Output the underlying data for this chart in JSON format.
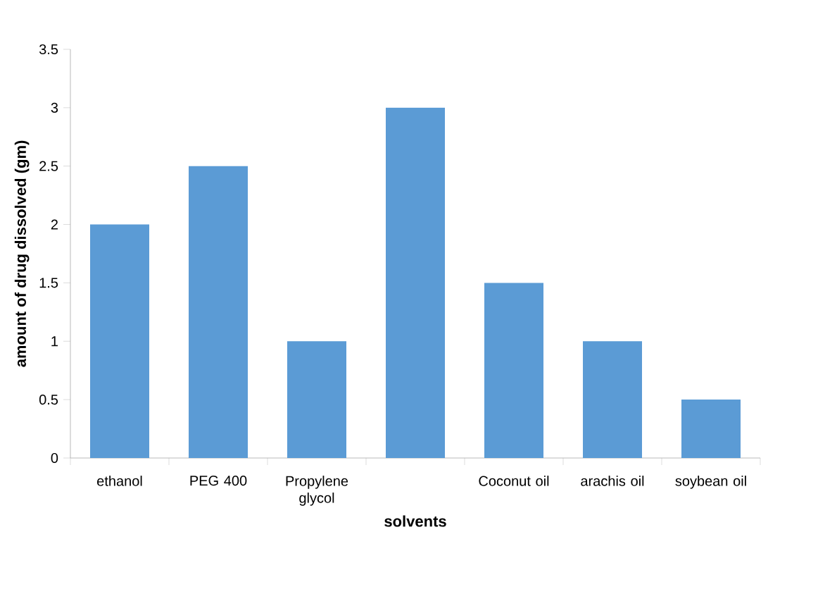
{
  "chart_data": {
    "type": "bar",
    "xlabel": "solvents",
    "ylabel": "amount of drug dissolved (gm)",
    "categories": [
      "ethanol",
      "PEG 400",
      "Propylene glycol",
      null,
      "Coconut oil",
      "arachis oil",
      "soybean oil"
    ],
    "values": [
      2,
      2.5,
      1,
      3,
      1.5,
      1,
      0.5
    ],
    "color": "#5b9bd5",
    "ylim": [
      0,
      3.5
    ],
    "yticks": [
      0,
      0.5,
      1,
      1.5,
      2,
      2.5,
      3,
      3.5
    ],
    "grid": false
  }
}
